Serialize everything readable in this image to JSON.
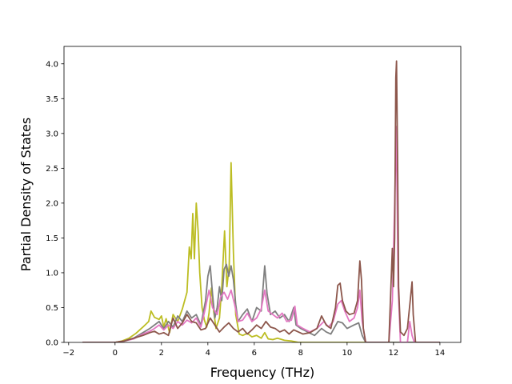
{
  "chart_data": {
    "type": "line",
    "title": "",
    "xlabel": "Frequency (THz)",
    "ylabel": "Partial Density of States",
    "xlim": [
      -2.2,
      14.9
    ],
    "ylim": [
      0,
      4.25
    ],
    "xticks": [
      -2,
      0,
      2,
      4,
      6,
      8,
      10,
      12,
      14
    ],
    "yticks": [
      0.0,
      0.5,
      1.0,
      1.5,
      2.0,
      2.5,
      3.0,
      3.5,
      4.0
    ],
    "xtick_labels": [
      "−2",
      "0",
      "2",
      "4",
      "6",
      "8",
      "10",
      "12",
      "14"
    ],
    "ytick_labels": [
      "0.0",
      "0.5",
      "1.0",
      "1.5",
      "2.0",
      "2.5",
      "3.0",
      "3.5",
      "4.0"
    ],
    "grid": false,
    "legend": false,
    "series": [
      {
        "color": "#bcbd22",
        "points": [
          [
            -1.4,
            0
          ],
          [
            -0.6,
            0
          ],
          [
            0.0,
            0.0
          ],
          [
            0.3,
            0.02
          ],
          [
            0.6,
            0.06
          ],
          [
            0.9,
            0.13
          ],
          [
            1.2,
            0.22
          ],
          [
            1.45,
            0.3
          ],
          [
            1.55,
            0.45
          ],
          [
            1.7,
            0.36
          ],
          [
            1.9,
            0.33
          ],
          [
            2.0,
            0.38
          ],
          [
            2.1,
            0.22
          ],
          [
            2.2,
            0.34
          ],
          [
            2.35,
            0.14
          ],
          [
            2.5,
            0.4
          ],
          [
            2.7,
            0.3
          ],
          [
            2.9,
            0.48
          ],
          [
            3.1,
            0.72
          ],
          [
            3.2,
            1.37
          ],
          [
            3.28,
            1.2
          ],
          [
            3.35,
            1.85
          ],
          [
            3.42,
            1.2
          ],
          [
            3.5,
            2.0
          ],
          [
            3.58,
            1.6
          ],
          [
            3.65,
            1.0
          ],
          [
            3.75,
            0.5
          ],
          [
            3.85,
            0.32
          ],
          [
            3.95,
            0.22
          ],
          [
            4.05,
            0.42
          ],
          [
            4.15,
            0.78
          ],
          [
            4.25,
            0.45
          ],
          [
            4.35,
            0.2
          ],
          [
            4.5,
            0.35
          ],
          [
            4.6,
            0.8
          ],
          [
            4.72,
            1.6
          ],
          [
            4.82,
            0.8
          ],
          [
            4.92,
            1.1
          ],
          [
            5.0,
            2.58
          ],
          [
            5.1,
            1.3
          ],
          [
            5.2,
            0.4
          ],
          [
            5.35,
            0.12
          ],
          [
            5.5,
            0.1
          ],
          [
            5.7,
            0.13
          ],
          [
            5.9,
            0.08
          ],
          [
            6.1,
            0.1
          ],
          [
            6.3,
            0.06
          ],
          [
            6.45,
            0.14
          ],
          [
            6.6,
            0.05
          ],
          [
            6.8,
            0.04
          ],
          [
            7.0,
            0.06
          ],
          [
            7.3,
            0.03
          ],
          [
            7.6,
            0.02
          ],
          [
            7.9,
            0.0
          ],
          [
            8.4,
            0.0
          ],
          [
            14.0,
            0.0
          ]
        ]
      },
      {
        "color": "#7f7f7f",
        "points": [
          [
            -1.4,
            0
          ],
          [
            0,
            0
          ],
          [
            0.4,
            0.02
          ],
          [
            0.8,
            0.06
          ],
          [
            1.2,
            0.14
          ],
          [
            1.5,
            0.2
          ],
          [
            1.7,
            0.25
          ],
          [
            1.9,
            0.3
          ],
          [
            2.1,
            0.2
          ],
          [
            2.3,
            0.3
          ],
          [
            2.5,
            0.22
          ],
          [
            2.7,
            0.38
          ],
          [
            2.9,
            0.3
          ],
          [
            3.1,
            0.45
          ],
          [
            3.3,
            0.35
          ],
          [
            3.5,
            0.4
          ],
          [
            3.7,
            0.25
          ],
          [
            3.9,
            0.6
          ],
          [
            4.0,
            0.95
          ],
          [
            4.1,
            1.1
          ],
          [
            4.2,
            0.7
          ],
          [
            4.3,
            0.35
          ],
          [
            4.4,
            0.5
          ],
          [
            4.5,
            0.8
          ],
          [
            4.6,
            0.6
          ],
          [
            4.7,
            1.05
          ],
          [
            4.8,
            1.12
          ],
          [
            4.9,
            0.95
          ],
          [
            5.0,
            1.1
          ],
          [
            5.1,
            0.9
          ],
          [
            5.2,
            0.55
          ],
          [
            5.3,
            0.3
          ],
          [
            5.5,
            0.4
          ],
          [
            5.7,
            0.48
          ],
          [
            5.9,
            0.3
          ],
          [
            6.1,
            0.5
          ],
          [
            6.3,
            0.45
          ],
          [
            6.45,
            1.1
          ],
          [
            6.55,
            0.7
          ],
          [
            6.7,
            0.4
          ],
          [
            6.9,
            0.45
          ],
          [
            7.1,
            0.35
          ],
          [
            7.3,
            0.4
          ],
          [
            7.5,
            0.3
          ],
          [
            7.7,
            0.5
          ],
          [
            7.8,
            0.25
          ],
          [
            8.0,
            0.2
          ],
          [
            8.3,
            0.15
          ],
          [
            8.6,
            0.1
          ],
          [
            8.9,
            0.2
          ],
          [
            9.1,
            0.15
          ],
          [
            9.3,
            0.12
          ],
          [
            9.6,
            0.3
          ],
          [
            9.8,
            0.28
          ],
          [
            10.0,
            0.2
          ],
          [
            10.3,
            0.25
          ],
          [
            10.5,
            0.28
          ],
          [
            10.65,
            0.1
          ],
          [
            10.8,
            0.0
          ],
          [
            14.0,
            0.0
          ]
        ]
      },
      {
        "color": "#e377c2",
        "points": [
          [
            -1.4,
            0
          ],
          [
            0,
            0
          ],
          [
            0.4,
            0.02
          ],
          [
            0.8,
            0.05
          ],
          [
            1.2,
            0.12
          ],
          [
            1.5,
            0.16
          ],
          [
            1.7,
            0.2
          ],
          [
            1.9,
            0.25
          ],
          [
            2.1,
            0.18
          ],
          [
            2.3,
            0.25
          ],
          [
            2.5,
            0.2
          ],
          [
            2.7,
            0.3
          ],
          [
            2.9,
            0.25
          ],
          [
            3.1,
            0.32
          ],
          [
            3.3,
            0.28
          ],
          [
            3.5,
            0.35
          ],
          [
            3.7,
            0.22
          ],
          [
            3.9,
            0.5
          ],
          [
            4.05,
            0.75
          ],
          [
            4.2,
            0.5
          ],
          [
            4.4,
            0.4
          ],
          [
            4.55,
            0.65
          ],
          [
            4.7,
            0.72
          ],
          [
            4.85,
            0.62
          ],
          [
            5.0,
            0.75
          ],
          [
            5.15,
            0.55
          ],
          [
            5.3,
            0.3
          ],
          [
            5.5,
            0.32
          ],
          [
            5.7,
            0.42
          ],
          [
            5.9,
            0.3
          ],
          [
            6.1,
            0.35
          ],
          [
            6.3,
            0.48
          ],
          [
            6.45,
            0.75
          ],
          [
            6.6,
            0.45
          ],
          [
            6.8,
            0.4
          ],
          [
            7.0,
            0.35
          ],
          [
            7.2,
            0.42
          ],
          [
            7.4,
            0.3
          ],
          [
            7.6,
            0.32
          ],
          [
            7.75,
            0.52
          ],
          [
            7.85,
            0.25
          ],
          [
            8.1,
            0.2
          ],
          [
            8.4,
            0.15
          ],
          [
            8.7,
            0.2
          ],
          [
            9.0,
            0.3
          ],
          [
            9.2,
            0.22
          ],
          [
            9.4,
            0.3
          ],
          [
            9.6,
            0.55
          ],
          [
            9.75,
            0.6
          ],
          [
            9.9,
            0.45
          ],
          [
            10.1,
            0.3
          ],
          [
            10.3,
            0.35
          ],
          [
            10.45,
            0.5
          ],
          [
            10.55,
            0.75
          ],
          [
            10.65,
            0.3
          ],
          [
            10.8,
            0.0
          ],
          [
            11.8,
            0.0
          ],
          [
            11.95,
            0.6
          ],
          [
            12.05,
            2.0
          ],
          [
            12.12,
            3.1
          ],
          [
            12.2,
            0.8
          ],
          [
            12.3,
            0.0
          ],
          [
            12.6,
            0.0
          ],
          [
            12.7,
            0.3
          ],
          [
            12.8,
            0.1
          ],
          [
            12.9,
            0.0
          ],
          [
            14.0,
            0.0
          ]
        ]
      },
      {
        "color": "#8c564b",
        "points": [
          [
            -1.4,
            0
          ],
          [
            0,
            0
          ],
          [
            0.4,
            0.02
          ],
          [
            0.8,
            0.06
          ],
          [
            1.2,
            0.1
          ],
          [
            1.5,
            0.14
          ],
          [
            1.7,
            0.16
          ],
          [
            1.9,
            0.12
          ],
          [
            2.1,
            0.14
          ],
          [
            2.3,
            0.1
          ],
          [
            2.5,
            0.35
          ],
          [
            2.7,
            0.2
          ],
          [
            2.9,
            0.28
          ],
          [
            3.1,
            0.4
          ],
          [
            3.3,
            0.3
          ],
          [
            3.5,
            0.28
          ],
          [
            3.7,
            0.18
          ],
          [
            3.9,
            0.2
          ],
          [
            4.1,
            0.35
          ],
          [
            4.3,
            0.25
          ],
          [
            4.5,
            0.15
          ],
          [
            4.7,
            0.22
          ],
          [
            4.9,
            0.28
          ],
          [
            5.1,
            0.2
          ],
          [
            5.3,
            0.15
          ],
          [
            5.5,
            0.2
          ],
          [
            5.7,
            0.12
          ],
          [
            5.9,
            0.18
          ],
          [
            6.1,
            0.25
          ],
          [
            6.3,
            0.2
          ],
          [
            6.5,
            0.3
          ],
          [
            6.7,
            0.22
          ],
          [
            6.9,
            0.2
          ],
          [
            7.1,
            0.15
          ],
          [
            7.3,
            0.18
          ],
          [
            7.5,
            0.12
          ],
          [
            7.7,
            0.18
          ],
          [
            7.9,
            0.15
          ],
          [
            8.1,
            0.12
          ],
          [
            8.4,
            0.14
          ],
          [
            8.7,
            0.2
          ],
          [
            8.9,
            0.38
          ],
          [
            9.1,
            0.25
          ],
          [
            9.3,
            0.2
          ],
          [
            9.5,
            0.5
          ],
          [
            9.6,
            0.82
          ],
          [
            9.7,
            0.85
          ],
          [
            9.8,
            0.6
          ],
          [
            9.95,
            0.45
          ],
          [
            10.1,
            0.4
          ],
          [
            10.3,
            0.42
          ],
          [
            10.45,
            0.6
          ],
          [
            10.55,
            1.17
          ],
          [
            10.62,
            0.9
          ],
          [
            10.7,
            0.2
          ],
          [
            10.8,
            0.0
          ],
          [
            11.8,
            0.0
          ],
          [
            11.9,
            0.9
          ],
          [
            11.95,
            1.35
          ],
          [
            12.0,
            0.8
          ],
          [
            12.05,
            1.5
          ],
          [
            12.1,
            3.8
          ],
          [
            12.13,
            4.04
          ],
          [
            12.18,
            2.5
          ],
          [
            12.22,
            0.8
          ],
          [
            12.3,
            0.15
          ],
          [
            12.45,
            0.1
          ],
          [
            12.6,
            0.2
          ],
          [
            12.72,
            0.6
          ],
          [
            12.8,
            0.87
          ],
          [
            12.85,
            0.4
          ],
          [
            12.95,
            0.0
          ],
          [
            14.0,
            0.0
          ]
        ]
      }
    ]
  }
}
